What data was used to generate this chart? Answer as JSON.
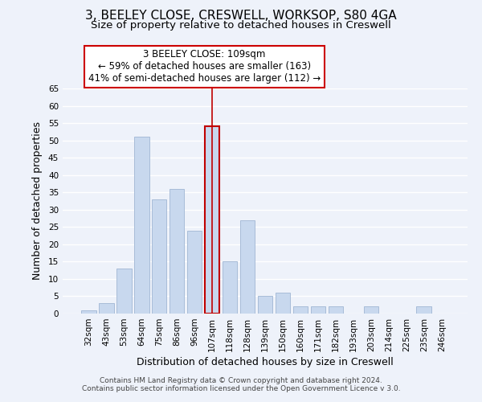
{
  "title": "3, BEELEY CLOSE, CRESWELL, WORKSOP, S80 4GA",
  "subtitle": "Size of property relative to detached houses in Creswell",
  "xlabel": "Distribution of detached houses by size in Creswell",
  "ylabel": "Number of detached properties",
  "bar_color": "#c8d8ee",
  "bar_edge_color": "#a8bcd8",
  "highlight_bar_edge_color": "#c00000",
  "vline_color": "#c00000",
  "categories": [
    "32sqm",
    "43sqm",
    "53sqm",
    "64sqm",
    "75sqm",
    "86sqm",
    "96sqm",
    "107sqm",
    "118sqm",
    "128sqm",
    "139sqm",
    "150sqm",
    "160sqm",
    "171sqm",
    "182sqm",
    "193sqm",
    "203sqm",
    "214sqm",
    "225sqm",
    "235sqm",
    "246sqm"
  ],
  "values": [
    1,
    3,
    13,
    51,
    33,
    36,
    24,
    54,
    15,
    27,
    5,
    6,
    2,
    2,
    2,
    0,
    2,
    0,
    0,
    2,
    0
  ],
  "highlight_index": 7,
  "annotation_lines": [
    "3 BEELEY CLOSE: 109sqm",
    "← 59% of detached houses are smaller (163)",
    "41% of semi-detached houses are larger (112) →"
  ],
  "footer_lines": [
    "Contains HM Land Registry data © Crown copyright and database right 2024.",
    "Contains public sector information licensed under the Open Government Licence v 3.0."
  ],
  "ylim": [
    0,
    65
  ],
  "yticks": [
    0,
    5,
    10,
    15,
    20,
    25,
    30,
    35,
    40,
    45,
    50,
    55,
    60,
    65
  ],
  "background_color": "#eef2fa",
  "grid_color": "#ffffff",
  "title_fontsize": 11,
  "subtitle_fontsize": 9.5,
  "axis_label_fontsize": 9,
  "tick_fontsize": 7.5,
  "annotation_fontsize": 8.5,
  "footer_fontsize": 6.5
}
